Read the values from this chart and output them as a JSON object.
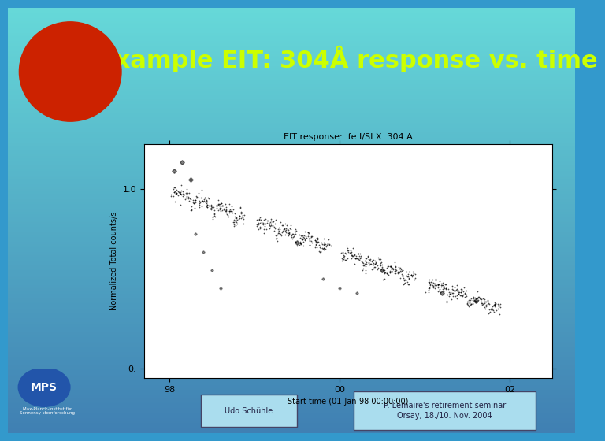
{
  "title": "Example EIT: 304Å response vs. time",
  "title_color": "#ccff00",
  "title_fontsize": 22,
  "bg_top_color": "#4488cc",
  "bg_bottom_color": "#00ddee",
  "footer_left_text": "Udo Schühle",
  "footer_right_line1": "P. Lemaire's retirement seminar",
  "footer_right_line2": "Orsay, 18./10. Nov. 2004",
  "plot_title": "EIT response:  fe I/SI X  304 A",
  "plot_xlabel": "Start time (01-Jan-98 00:00:00)",
  "plot_ylabel": "Normalized Total counts/s",
  "plot_xticks": [
    "98",
    "00",
    "02"
  ],
  "plot_yticks": [
    "1.0",
    "0."
  ],
  "plot_bg": "#ffffff"
}
